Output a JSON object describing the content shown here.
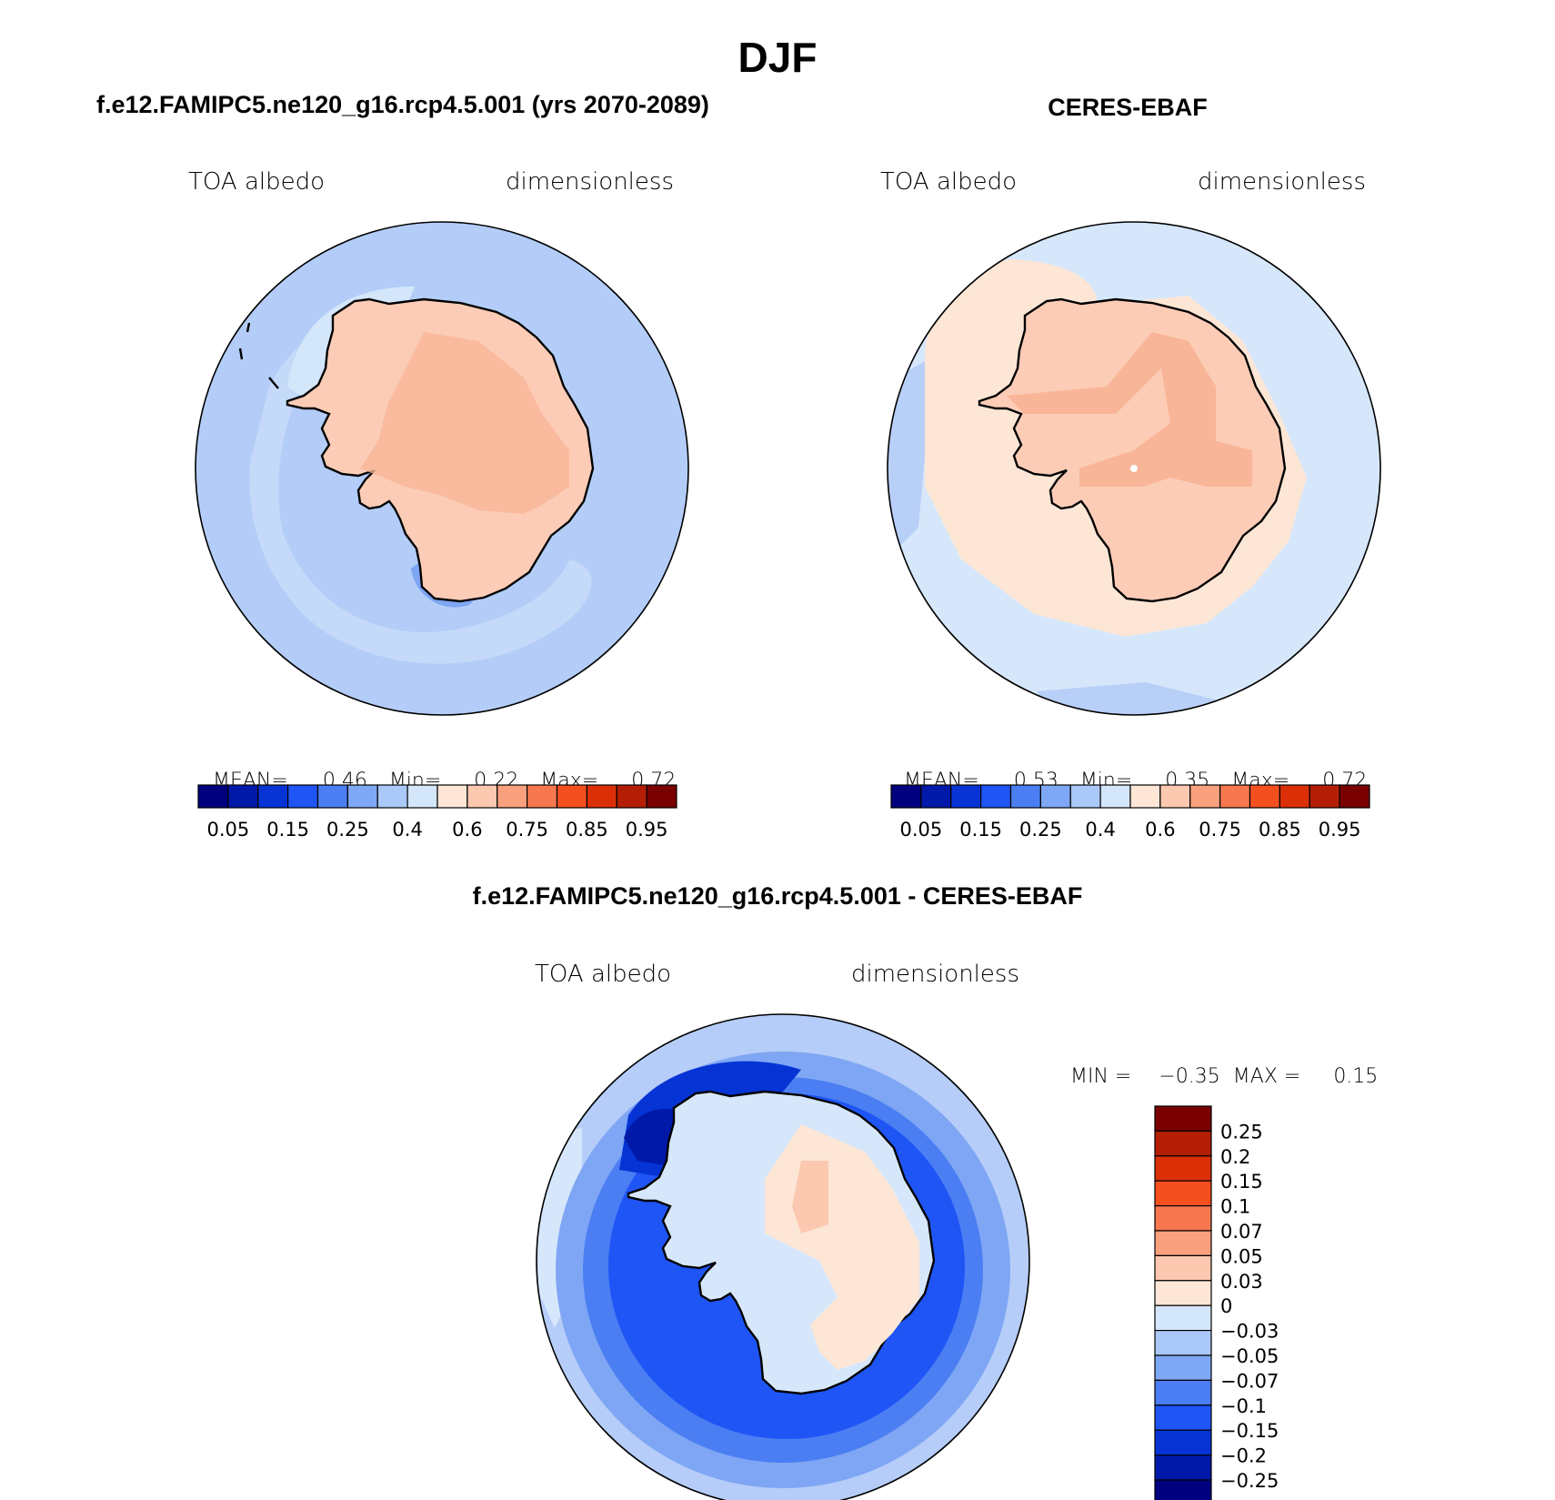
{
  "figure": {
    "title": "DJF"
  },
  "panels": [
    {
      "id": "model",
      "title": "f.e12.FAMIPC5.ne120_g16.rcp4.5.001 (yrs 2070-2089)",
      "left_label": "TOA albedo",
      "right_label": "dimensionless",
      "stats": {
        "mean_label": "MEAN=",
        "mean": "0.46",
        "min_label": "Min=",
        "min": "0.22",
        "max_label": "Max=",
        "max": "0.72"
      }
    },
    {
      "id": "obs",
      "title": "CERES-EBAF",
      "left_label": "TOA albedo",
      "right_label": "dimensionless",
      "stats": {
        "mean_label": "MEAN=",
        "mean": "0.53",
        "min_label": "Min=",
        "min": "0.35",
        "max_label": "Max=",
        "max": "0.72"
      }
    },
    {
      "id": "diff",
      "title": "f.e12.FAMIPC5.ne120_g16.rcp4.5.001 - CERES-EBAF",
      "left_label": "TOA albedo",
      "right_label": "dimensionless",
      "stats": {
        "min_label": "MIN =",
        "min": "−0.35",
        "max_label": "MAX =",
        "max": "0.15"
      }
    }
  ],
  "colorbar_abs": {
    "colors": [
      "#00007f",
      "#0019a8",
      "#0634d4",
      "#1f55f5",
      "#4a7ef2",
      "#7ea8f5",
      "#aac8f8",
      "#d4e6fa",
      "#fde6d6",
      "#fcc8b0",
      "#f9a07f",
      "#f77850",
      "#f4501f",
      "#db2f08",
      "#b31e05",
      "#7a0000"
    ],
    "tick_labels": [
      "0.05",
      "0.15",
      "0.25",
      "0.4",
      "0.6",
      "0.75",
      "0.85",
      "0.95"
    ]
  },
  "colorbar_diff": {
    "colors": [
      "#7a0000",
      "#b31e05",
      "#db2f08",
      "#f4501f",
      "#f77850",
      "#f9a07f",
      "#fcc8b0",
      "#fde6d6",
      "#d4e6fa",
      "#aac8f8",
      "#7ea8f5",
      "#4a7ef2",
      "#1f55f5",
      "#0634d4",
      "#0019a8",
      "#00007f"
    ],
    "tick_labels": [
      "0.25",
      "0.2",
      "0.15",
      "0.1",
      "0.07",
      "0.05",
      "0.03",
      "0",
      "−0.03",
      "−0.05",
      "−0.07",
      "−0.1",
      "−0.15",
      "−0.2",
      "−0.25"
    ]
  },
  "map_colors": {
    "model": {
      "ocean": "#b3cdf8",
      "ice_edge": "#d4e6fa",
      "ice_edge2": "#c5daf9",
      "land": "#fcccb6",
      "interior": "#f9b597",
      "strip": "#7fa6f4"
    },
    "obs": {
      "ocean": "#d6e7fb",
      "seaice": "#fde6d6",
      "land": "#fcccb6",
      "interior": "#f9b597",
      "ocean_blue": "#b8cff8"
    },
    "diff": {
      "outer": "#b5cdf8",
      "mid": "#7fa6f4",
      "ring": "#4a7ef2",
      "ring2": "#1f55f5",
      "deep": "#0634d4",
      "deepest": "#0019a8",
      "land": "#d6e7fb",
      "warm": "#fde6d6",
      "warm2": "#fcc8b0"
    }
  }
}
